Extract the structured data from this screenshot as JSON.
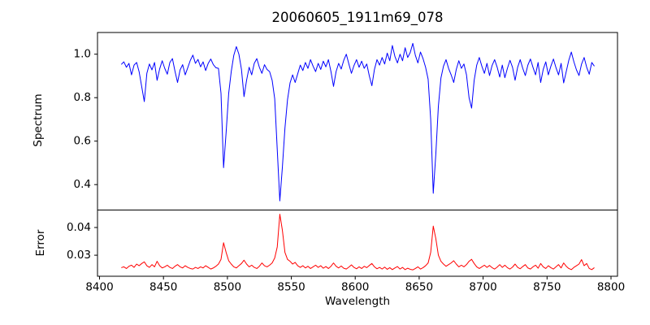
{
  "chart_data": {
    "type": "line",
    "title": "20060605_1911m69_078",
    "xlabel": "Wavelength",
    "grid": false,
    "legend": "none",
    "xlim": [
      8398.4,
      8805.1
    ],
    "xticks": [
      8400,
      8450,
      8500,
      8550,
      8600,
      8650,
      8700,
      8750,
      8800
    ],
    "xtick_labels": [
      "8400",
      "8450",
      "8500",
      "8550",
      "8600",
      "8650",
      "8700",
      "8750",
      "8800"
    ],
    "x": [
      8417,
      8419,
      8421,
      8423,
      8425,
      8427,
      8429,
      8431,
      8433,
      8435,
      8437,
      8439,
      8441,
      8443,
      8445,
      8447,
      8449,
      8451,
      8453,
      8455,
      8457,
      8459,
      8461,
      8463,
      8465,
      8467,
      8469,
      8471,
      8473,
      8475,
      8477,
      8479,
      8481,
      8483,
      8485,
      8487,
      8489,
      8491,
      8493,
      8495,
      8497,
      8499,
      8501,
      8503,
      8505,
      8507,
      8509,
      8511,
      8513,
      8515,
      8517,
      8519,
      8521,
      8523,
      8525,
      8527,
      8529,
      8531,
      8533,
      8535,
      8537,
      8539,
      8541,
      8543,
      8545,
      8547,
      8549,
      8551,
      8553,
      8555,
      8557,
      8559,
      8561,
      8563,
      8565,
      8567,
      8569,
      8571,
      8573,
      8575,
      8577,
      8579,
      8581,
      8583,
      8585,
      8587,
      8589,
      8591,
      8593,
      8595,
      8597,
      8599,
      8601,
      8603,
      8605,
      8607,
      8609,
      8611,
      8613,
      8615,
      8617,
      8619,
      8621,
      8623,
      8625,
      8627,
      8629,
      8631,
      8633,
      8635,
      8637,
      8639,
      8641,
      8643,
      8645,
      8647,
      8649,
      8651,
      8653,
      8655,
      8657,
      8659,
      8661,
      8663,
      8665,
      8667,
      8669,
      8671,
      8673,
      8675,
      8677,
      8679,
      8681,
      8683,
      8685,
      8687,
      8689,
      8691,
      8693,
      8695,
      8697,
      8699,
      8701,
      8703,
      8705,
      8707,
      8709,
      8711,
      8713,
      8715,
      8717,
      8719,
      8721,
      8723,
      8725,
      8727,
      8729,
      8731,
      8733,
      8735,
      8737,
      8739,
      8741,
      8743,
      8745,
      8747,
      8749,
      8751,
      8753,
      8755,
      8757,
      8759,
      8761,
      8763,
      8765,
      8767,
      8769,
      8771,
      8773,
      8775,
      8777,
      8779,
      8781,
      8783,
      8785,
      8787
    ],
    "absorption_line_centers": [
      8498,
      8542,
      8662
    ],
    "panels": [
      {
        "name": "spectrum",
        "ylabel": "Spectrum",
        "color": "#0000ff",
        "ylim": [
          0.283,
          1.1
        ],
        "yticks": [
          0.4,
          0.6,
          0.8,
          1.0
        ],
        "ytick_labels": [
          "0.4",
          "0.6",
          "0.8",
          "1.0"
        ],
        "values": [
          0.953,
          0.965,
          0.94,
          0.958,
          0.905,
          0.95,
          0.962,
          0.918,
          0.85,
          0.782,
          0.912,
          0.955,
          0.928,
          0.962,
          0.88,
          0.932,
          0.97,
          0.935,
          0.908,
          0.962,
          0.98,
          0.922,
          0.87,
          0.928,
          0.952,
          0.905,
          0.938,
          0.972,
          0.996,
          0.958,
          0.976,
          0.942,
          0.965,
          0.925,
          0.958,
          0.978,
          0.952,
          0.938,
          0.935,
          0.82,
          0.478,
          0.64,
          0.82,
          0.92,
          0.995,
          1.035,
          1.0,
          0.93,
          0.805,
          0.88,
          0.94,
          0.905,
          0.958,
          0.98,
          0.94,
          0.912,
          0.952,
          0.93,
          0.92,
          0.88,
          0.795,
          0.56,
          0.325,
          0.48,
          0.66,
          0.79,
          0.868,
          0.905,
          0.87,
          0.91,
          0.95,
          0.925,
          0.962,
          0.935,
          0.975,
          0.945,
          0.92,
          0.958,
          0.93,
          0.968,
          0.942,
          0.975,
          0.92,
          0.852,
          0.92,
          0.958,
          0.932,
          0.972,
          1.0,
          0.955,
          0.912,
          0.948,
          0.975,
          0.94,
          0.968,
          0.935,
          0.955,
          0.9,
          0.855,
          0.93,
          0.975,
          0.95,
          0.985,
          0.955,
          1.005,
          0.97,
          1.04,
          0.99,
          0.96,
          1.0,
          0.97,
          1.03,
          0.985,
          1.008,
          1.05,
          0.995,
          0.96,
          1.01,
          0.98,
          0.94,
          0.885,
          0.7,
          0.36,
          0.54,
          0.76,
          0.89,
          0.945,
          0.975,
          0.935,
          0.905,
          0.87,
          0.93,
          0.97,
          0.935,
          0.955,
          0.905,
          0.8,
          0.752,
          0.88,
          0.95,
          0.985,
          0.945,
          0.912,
          0.958,
          0.902,
          0.948,
          0.975,
          0.94,
          0.895,
          0.95,
          0.892,
          0.935,
          0.972,
          0.94,
          0.88,
          0.94,
          0.975,
          0.935,
          0.902,
          0.95,
          0.978,
          0.94,
          0.905,
          0.962,
          0.87,
          0.93,
          0.965,
          0.905,
          0.945,
          0.978,
          0.938,
          0.905,
          0.958,
          0.868,
          0.92,
          0.972,
          1.01,
          0.965,
          0.928,
          0.902,
          0.955,
          0.985,
          0.94,
          0.908,
          0.962,
          0.945
        ]
      },
      {
        "name": "error",
        "ylabel": "Error",
        "color": "#ff0000",
        "ylim": [
          0.0224,
          0.0463
        ],
        "yticks": [
          0.03,
          0.04
        ],
        "ytick_labels": [
          "0.03",
          "0.04"
        ],
        "values": [
          0.0255,
          0.0258,
          0.0252,
          0.026,
          0.0264,
          0.0256,
          0.0268,
          0.0262,
          0.027,
          0.0276,
          0.0262,
          0.0256,
          0.0266,
          0.0258,
          0.0278,
          0.0262,
          0.0254,
          0.0258,
          0.0264,
          0.0256,
          0.0252,
          0.026,
          0.0266,
          0.0258,
          0.0254,
          0.0262,
          0.0256,
          0.0252,
          0.025,
          0.0256,
          0.0252,
          0.0258,
          0.0254,
          0.0262,
          0.0256,
          0.025,
          0.0254,
          0.026,
          0.0268,
          0.0285,
          0.0345,
          0.031,
          0.028,
          0.0268,
          0.0258,
          0.0254,
          0.0262,
          0.027,
          0.0282,
          0.0268,
          0.0258,
          0.0264,
          0.0256,
          0.0252,
          0.026,
          0.0272,
          0.0262,
          0.0258,
          0.0264,
          0.0272,
          0.029,
          0.033,
          0.0448,
          0.039,
          0.031,
          0.0285,
          0.0278,
          0.0268,
          0.0274,
          0.0262,
          0.0256,
          0.0262,
          0.0254,
          0.026,
          0.0252,
          0.0258,
          0.0264,
          0.0256,
          0.0262,
          0.0253,
          0.0259,
          0.0252,
          0.026,
          0.0272,
          0.026,
          0.0254,
          0.0261,
          0.0253,
          0.025,
          0.0257,
          0.0265,
          0.0256,
          0.0251,
          0.0258,
          0.0252,
          0.026,
          0.0255,
          0.0263,
          0.027,
          0.0258,
          0.0251,
          0.0256,
          0.025,
          0.0257,
          0.0249,
          0.0255,
          0.0248,
          0.0254,
          0.0259,
          0.025,
          0.0256,
          0.0248,
          0.0253,
          0.0249,
          0.0247,
          0.0252,
          0.0258,
          0.025,
          0.0255,
          0.0262,
          0.0272,
          0.031,
          0.0405,
          0.036,
          0.03,
          0.0278,
          0.0268,
          0.026,
          0.0266,
          0.0272,
          0.028,
          0.0268,
          0.0258,
          0.0264,
          0.0258,
          0.0266,
          0.0278,
          0.0285,
          0.027,
          0.0258,
          0.0252,
          0.0258,
          0.0264,
          0.0256,
          0.0263,
          0.0255,
          0.025,
          0.0257,
          0.0266,
          0.0256,
          0.0264,
          0.0255,
          0.025,
          0.0257,
          0.0268,
          0.0256,
          0.0251,
          0.0259,
          0.0266,
          0.0254,
          0.025,
          0.0258,
          0.0264,
          0.0253,
          0.027,
          0.0258,
          0.0252,
          0.0262,
          0.0255,
          0.025,
          0.0258,
          0.0266,
          0.0254,
          0.0272,
          0.026,
          0.0252,
          0.0248,
          0.0256,
          0.0262,
          0.0268,
          0.0284,
          0.0262,
          0.027,
          0.0252,
          0.0248,
          0.0255
        ]
      }
    ]
  },
  "style": {
    "background": "#ffffff",
    "axis_color": "#000000",
    "spectrum_color": "#0000ff",
    "error_color": "#ff0000"
  }
}
